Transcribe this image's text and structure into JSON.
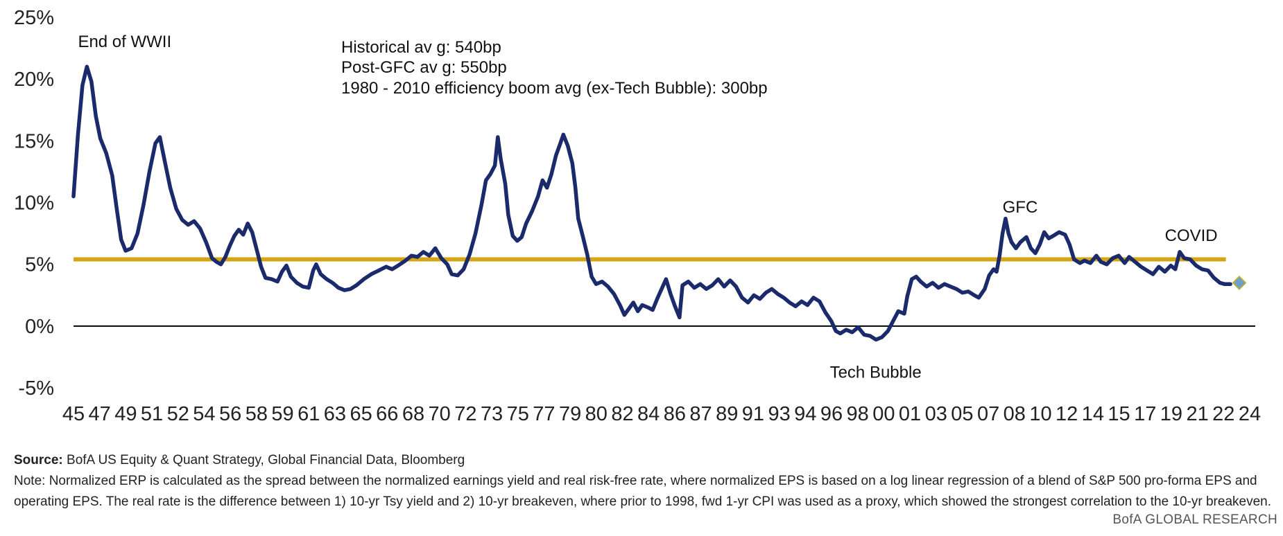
{
  "chart_data": {
    "type": "line",
    "ylim": [
      -5,
      25
    ],
    "y_ticks": [
      "25%",
      "20%",
      "15%",
      "10%",
      "5%",
      "0%",
      "-5%"
    ],
    "y_tick_values": [
      25,
      20,
      15,
      10,
      5,
      0,
      -5
    ],
    "xlim": [
      1945,
      2024
    ],
    "x_ticks": [
      "45",
      "47",
      "49",
      "51",
      "52",
      "54",
      "56",
      "58",
      "59",
      "61",
      "63",
      "65",
      "66",
      "68",
      "70",
      "72",
      "73",
      "75",
      "77",
      "79",
      "80",
      "82",
      "84",
      "86",
      "87",
      "89",
      "91",
      "93",
      "94",
      "96",
      "98",
      "00",
      "01",
      "03",
      "05",
      "07",
      "08",
      "10",
      "12",
      "14",
      "15",
      "17",
      "19",
      "21",
      "22",
      "24"
    ],
    "grid": false,
    "colors": {
      "series": "#1b2a6b",
      "average": "#d4a514",
      "zero_line": "#000000",
      "marker": "#6a9fd0",
      "marker_edge": "#b9ad3a"
    },
    "series": [
      {
        "values": [
          [
            1945.0,
            10.5
          ],
          [
            1945.3,
            15.5
          ],
          [
            1945.6,
            19.5
          ],
          [
            1945.9,
            21.0
          ],
          [
            1946.2,
            19.8
          ],
          [
            1946.5,
            17.0
          ],
          [
            1946.8,
            15.2
          ],
          [
            1947.2,
            14.0
          ],
          [
            1947.6,
            12.2
          ],
          [
            1947.9,
            9.5
          ],
          [
            1948.2,
            7.0
          ],
          [
            1948.5,
            6.1
          ],
          [
            1948.9,
            6.3
          ],
          [
            1949.3,
            7.5
          ],
          [
            1949.7,
            9.8
          ],
          [
            1950.1,
            12.5
          ],
          [
            1950.5,
            14.8
          ],
          [
            1950.8,
            15.3
          ],
          [
            1951.1,
            13.5
          ],
          [
            1951.5,
            11.2
          ],
          [
            1951.9,
            9.5
          ],
          [
            1952.3,
            8.6
          ],
          [
            1952.7,
            8.2
          ],
          [
            1953.1,
            8.5
          ],
          [
            1953.5,
            7.9
          ],
          [
            1953.9,
            6.8
          ],
          [
            1954.3,
            5.5
          ],
          [
            1954.6,
            5.2
          ],
          [
            1954.9,
            5.0
          ],
          [
            1955.2,
            5.6
          ],
          [
            1955.5,
            6.5
          ],
          [
            1955.8,
            7.3
          ],
          [
            1956.1,
            7.8
          ],
          [
            1956.4,
            7.4
          ],
          [
            1956.7,
            8.3
          ],
          [
            1957.0,
            7.6
          ],
          [
            1957.3,
            6.2
          ],
          [
            1957.6,
            4.8
          ],
          [
            1957.9,
            3.9
          ],
          [
            1958.3,
            3.8
          ],
          [
            1958.7,
            3.6
          ],
          [
            1959.0,
            4.4
          ],
          [
            1959.3,
            4.9
          ],
          [
            1959.6,
            4.0
          ],
          [
            1960.0,
            3.5
          ],
          [
            1960.4,
            3.2
          ],
          [
            1960.8,
            3.1
          ],
          [
            1961.1,
            4.5
          ],
          [
            1961.3,
            5.0
          ],
          [
            1961.6,
            4.2
          ],
          [
            1962.0,
            3.8
          ],
          [
            1962.4,
            3.5
          ],
          [
            1962.8,
            3.1
          ],
          [
            1963.2,
            2.9
          ],
          [
            1963.6,
            3.0
          ],
          [
            1964.0,
            3.3
          ],
          [
            1964.5,
            3.8
          ],
          [
            1965.0,
            4.2
          ],
          [
            1965.5,
            4.5
          ],
          [
            1966.0,
            4.8
          ],
          [
            1966.4,
            4.6
          ],
          [
            1966.8,
            4.9
          ],
          [
            1967.3,
            5.3
          ],
          [
            1967.7,
            5.7
          ],
          [
            1968.1,
            5.6
          ],
          [
            1968.5,
            6.0
          ],
          [
            1968.9,
            5.7
          ],
          [
            1969.3,
            6.3
          ],
          [
            1969.7,
            5.5
          ],
          [
            1970.1,
            5.0
          ],
          [
            1970.4,
            4.2
          ],
          [
            1970.8,
            4.1
          ],
          [
            1971.2,
            4.6
          ],
          [
            1971.6,
            5.8
          ],
          [
            1972.0,
            7.5
          ],
          [
            1972.4,
            9.8
          ],
          [
            1972.7,
            11.8
          ],
          [
            1973.0,
            12.3
          ],
          [
            1973.3,
            13.0
          ],
          [
            1973.5,
            15.3
          ],
          [
            1973.7,
            13.5
          ],
          [
            1974.0,
            11.5
          ],
          [
            1974.2,
            9.0
          ],
          [
            1974.5,
            7.3
          ],
          [
            1974.8,
            6.9
          ],
          [
            1975.1,
            7.2
          ],
          [
            1975.4,
            8.3
          ],
          [
            1975.8,
            9.3
          ],
          [
            1976.2,
            10.5
          ],
          [
            1976.5,
            11.8
          ],
          [
            1976.8,
            11.2
          ],
          [
            1977.1,
            12.3
          ],
          [
            1977.4,
            13.8
          ],
          [
            1977.7,
            14.8
          ],
          [
            1977.9,
            15.5
          ],
          [
            1978.2,
            14.6
          ],
          [
            1978.5,
            13.2
          ],
          [
            1978.7,
            11.3
          ],
          [
            1978.9,
            8.7
          ],
          [
            1979.2,
            7.3
          ],
          [
            1979.5,
            5.8
          ],
          [
            1979.8,
            4.0
          ],
          [
            1980.1,
            3.4
          ],
          [
            1980.5,
            3.6
          ],
          [
            1980.9,
            3.2
          ],
          [
            1981.3,
            2.6
          ],
          [
            1981.7,
            1.7
          ],
          [
            1982.0,
            0.9
          ],
          [
            1982.3,
            1.4
          ],
          [
            1982.6,
            1.9
          ],
          [
            1982.9,
            1.2
          ],
          [
            1983.2,
            1.7
          ],
          [
            1983.6,
            1.5
          ],
          [
            1983.9,
            1.3
          ],
          [
            1984.2,
            2.2
          ],
          [
            1984.5,
            3.0
          ],
          [
            1984.8,
            3.8
          ],
          [
            1985.1,
            2.6
          ],
          [
            1985.4,
            1.6
          ],
          [
            1985.7,
            0.7
          ],
          [
            1985.9,
            3.3
          ],
          [
            1986.3,
            3.6
          ],
          [
            1986.7,
            3.1
          ],
          [
            1987.1,
            3.4
          ],
          [
            1987.5,
            3.0
          ],
          [
            1987.9,
            3.3
          ],
          [
            1988.3,
            3.8
          ],
          [
            1988.7,
            3.2
          ],
          [
            1989.1,
            3.7
          ],
          [
            1989.5,
            3.2
          ],
          [
            1989.9,
            2.3
          ],
          [
            1990.3,
            1.9
          ],
          [
            1990.7,
            2.5
          ],
          [
            1991.1,
            2.2
          ],
          [
            1991.5,
            2.7
          ],
          [
            1991.9,
            3.0
          ],
          [
            1992.3,
            2.6
          ],
          [
            1992.7,
            2.3
          ],
          [
            1993.1,
            1.9
          ],
          [
            1993.5,
            1.6
          ],
          [
            1993.9,
            2.0
          ],
          [
            1994.3,
            1.7
          ],
          [
            1994.7,
            2.3
          ],
          [
            1995.1,
            2.0
          ],
          [
            1995.5,
            1.1
          ],
          [
            1995.9,
            0.4
          ],
          [
            1996.2,
            -0.4
          ],
          [
            1996.5,
            -0.6
          ],
          [
            1996.9,
            -0.3
          ],
          [
            1997.3,
            -0.5
          ],
          [
            1997.7,
            -0.1
          ],
          [
            1998.1,
            -0.7
          ],
          [
            1998.5,
            -0.8
          ],
          [
            1998.9,
            -1.1
          ],
          [
            1999.3,
            -0.9
          ],
          [
            1999.7,
            -0.4
          ],
          [
            2000.0,
            0.3
          ],
          [
            2000.4,
            1.2
          ],
          [
            2000.8,
            1.0
          ],
          [
            2001.0,
            2.4
          ],
          [
            2001.3,
            3.8
          ],
          [
            2001.6,
            4.0
          ],
          [
            2001.9,
            3.6
          ],
          [
            2002.3,
            3.2
          ],
          [
            2002.7,
            3.5
          ],
          [
            2003.1,
            3.1
          ],
          [
            2003.5,
            3.4
          ],
          [
            2003.9,
            3.2
          ],
          [
            2004.3,
            3.0
          ],
          [
            2004.7,
            2.7
          ],
          [
            2005.1,
            2.8
          ],
          [
            2005.5,
            2.5
          ],
          [
            2005.8,
            2.3
          ],
          [
            2006.2,
            3.0
          ],
          [
            2006.5,
            4.1
          ],
          [
            2006.8,
            4.6
          ],
          [
            2007.0,
            4.4
          ],
          [
            2007.2,
            5.7
          ],
          [
            2007.4,
            7.5
          ],
          [
            2007.6,
            8.7
          ],
          [
            2007.8,
            7.5
          ],
          [
            2008.0,
            6.8
          ],
          [
            2008.3,
            6.3
          ],
          [
            2008.6,
            6.8
          ],
          [
            2009.0,
            7.2
          ],
          [
            2009.3,
            6.3
          ],
          [
            2009.6,
            5.9
          ],
          [
            2009.9,
            6.6
          ],
          [
            2010.2,
            7.6
          ],
          [
            2010.5,
            7.1
          ],
          [
            2010.8,
            7.3
          ],
          [
            2011.2,
            7.6
          ],
          [
            2011.6,
            7.4
          ],
          [
            2011.9,
            6.6
          ],
          [
            2012.2,
            5.4
          ],
          [
            2012.6,
            5.1
          ],
          [
            2012.9,
            5.3
          ],
          [
            2013.3,
            5.1
          ],
          [
            2013.7,
            5.7
          ],
          [
            2014.0,
            5.2
          ],
          [
            2014.4,
            5.0
          ],
          [
            2014.8,
            5.5
          ],
          [
            2015.2,
            5.7
          ],
          [
            2015.6,
            5.1
          ],
          [
            2015.9,
            5.6
          ],
          [
            2016.3,
            5.2
          ],
          [
            2016.7,
            4.8
          ],
          [
            2017.1,
            4.5
          ],
          [
            2017.5,
            4.2
          ],
          [
            2017.9,
            4.8
          ],
          [
            2018.3,
            4.4
          ],
          [
            2018.7,
            4.9
          ],
          [
            2019.0,
            4.6
          ],
          [
            2019.3,
            6.0
          ],
          [
            2019.6,
            5.5
          ],
          [
            2020.0,
            5.4
          ],
          [
            2020.4,
            4.9
          ],
          [
            2020.8,
            4.6
          ],
          [
            2021.2,
            4.5
          ],
          [
            2021.6,
            3.9
          ],
          [
            2022.0,
            3.5
          ],
          [
            2022.3,
            3.4
          ],
          [
            2022.7,
            3.4
          ]
        ]
      },
      {
        "values": [
          [
            1945.0,
            5.4
          ],
          [
            2022.4,
            5.4
          ]
        ]
      }
    ],
    "marker": {
      "x": 2023.3,
      "y": 3.5
    },
    "annotations": [
      {
        "text": "End of WWII",
        "x": 1945.3,
        "y": 22.6
      },
      {
        "text": "GFC",
        "x": 2007.4,
        "y": 9.2
      },
      {
        "text": "COVID",
        "x": 2018.3,
        "y": 6.9
      },
      {
        "text": "Tech Bubble",
        "x": 1995.8,
        "y": -4.2
      }
    ],
    "info_lines": [
      "Historical av g: 540bp",
      "Post-GFC av g: 550bp",
      "1980 - 2010 efficiency  boom avg (ex-Tech Bubble): 300bp"
    ]
  },
  "footer": {
    "source_label": "Source:",
    "source_text": "BofA US Equity  & Quant  Strategy, Global Financial Data, Bloomberg",
    "note_text": "Note: Normalized ERP is calculated as the spread between the normalized earnings yield and real risk-free rate, where normalized EPS is based on a log linear regression of a blend of S&P 500 pro-forma EPS and operating EPS. The real rate is the difference between 1) 10-yr Tsy yield and 2) 10-yr breakeven, where prior to 1998, fwd 1-yr CPI was used as a proxy, which showed the strongest  correlation to the 10-yr breakeven.",
    "brand": "BofA GLOBAL RESEARCH"
  }
}
